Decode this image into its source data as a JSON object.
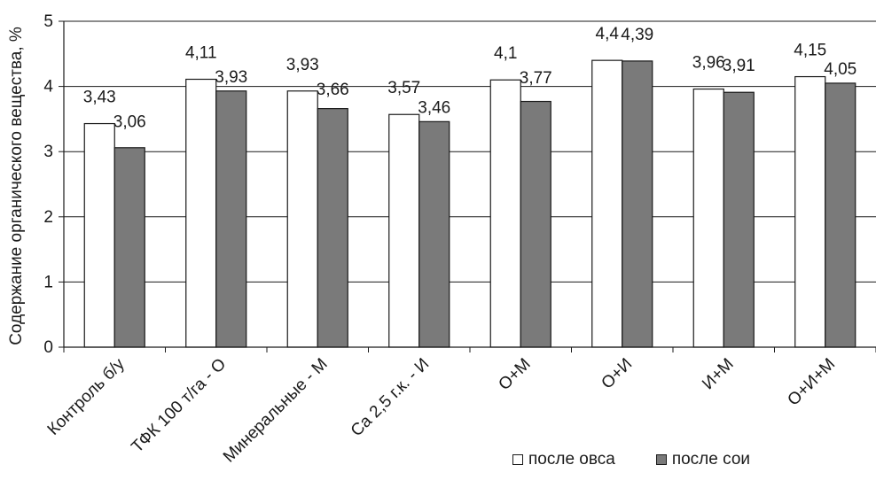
{
  "chart_data": {
    "type": "bar",
    "title": "",
    "xlabel": "",
    "ylabel": "Содержание органического вещества, %",
    "ylim": [
      0,
      5
    ],
    "yticks": [
      "0",
      "1",
      "2",
      "3",
      "4",
      "5"
    ],
    "grid": true,
    "legend_position": "bottom-right",
    "categories": [
      "Контроль б/у",
      "ТФК 100 т/га - О",
      "Минеральные - М",
      "Са 2,5 г.к. - И",
      "О+М",
      "О+И",
      "И+М",
      "О+И+М"
    ],
    "series": [
      {
        "name": "после овса",
        "color": "#ffffff",
        "values": [
          3.43,
          4.11,
          3.93,
          3.57,
          4.1,
          4.4,
          3.96,
          4.15
        ],
        "labels": [
          "3,43",
          "4,11",
          "3,93",
          "3,57",
          "4,1",
          "4,4",
          "3,96",
          "4,15"
        ]
      },
      {
        "name": "после сои",
        "color": "#7a7a7a",
        "values": [
          3.06,
          3.93,
          3.66,
          3.46,
          3.77,
          4.39,
          3.91,
          4.05
        ],
        "labels": [
          "3,06",
          "3,93",
          "3,66",
          "3,46",
          "3,77",
          "4,39",
          "3,91",
          "4,05"
        ]
      }
    ]
  }
}
